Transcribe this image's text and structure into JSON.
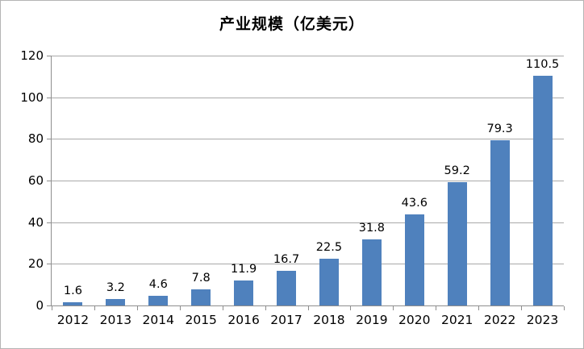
{
  "chart_data": {
    "type": "bar",
    "title": "产业规模（亿美元）",
    "categories": [
      "2012",
      "2013",
      "2014",
      "2015",
      "2016",
      "2017",
      "2018",
      "2019",
      "2020",
      "2021",
      "2022",
      "2023"
    ],
    "values": [
      1.6,
      3.2,
      4.6,
      7.8,
      11.9,
      16.7,
      22.5,
      31.8,
      43.6,
      59.2,
      79.3,
      110.5
    ],
    "xlabel": "",
    "ylabel": "",
    "ylim": [
      0,
      120
    ],
    "ytick_step": 20,
    "ytick_labels": [
      "0",
      "20",
      "40",
      "60",
      "80",
      "100",
      "120"
    ],
    "grid": "horizontal",
    "legend_position": "none",
    "data_labels": "above-bars",
    "colors": {
      "bar_fill": "#4f81bd",
      "axis_line": "#8e8e8e",
      "gridline": "#a9a9a9",
      "text": "#000000",
      "background": "#ffffff",
      "frame_border": "#b5b5b5"
    }
  }
}
